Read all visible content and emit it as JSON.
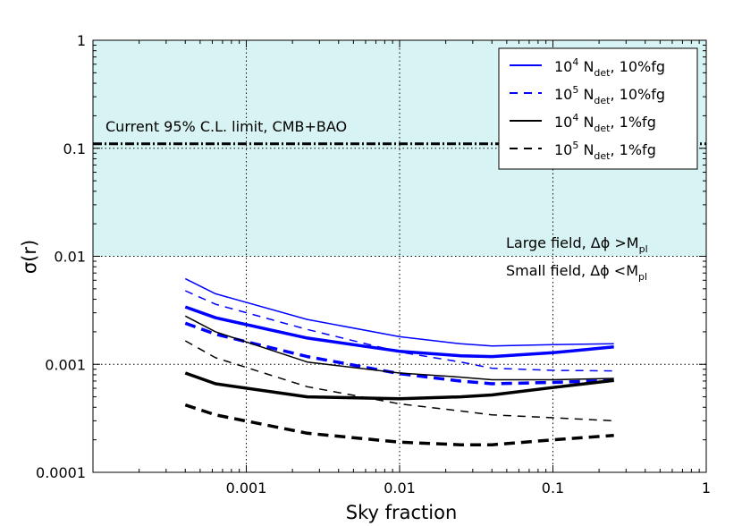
{
  "chart_data": {
    "type": "line",
    "xscale": "log",
    "yscale": "log",
    "xlim": [
      0.0001,
      1
    ],
    "ylim": [
      0.0001,
      1
    ],
    "xlabel": "Sky fraction",
    "ylabel": "σ(r)",
    "x_ticks": [
      0.001,
      0.01,
      0.1,
      1
    ],
    "x_tick_labels": [
      "0.001",
      "0.01",
      "0.1",
      "1"
    ],
    "y_ticks": [
      0.0001,
      0.001,
      0.01,
      0.1,
      1
    ],
    "y_tick_labels": [
      "0.0001",
      "0.001",
      "0.01",
      "0.1",
      "1"
    ],
    "grid": true,
    "shaded_region": {
      "y_from": 0.01,
      "y_to": 1,
      "color": "#d8f3f3"
    },
    "limit_line": {
      "y": 0.11,
      "label": "Current 95% C.L. limit, CMB+BAO"
    },
    "annotations": {
      "large_field": {
        "prefix": "Large field, ",
        "delta_phi": "Δϕ",
        "relation": " >M",
        "subscript": "pl"
      },
      "small_field": {
        "prefix": "Small field, ",
        "delta_phi": "Δϕ",
        "relation": " <M",
        "subscript": "pl"
      }
    },
    "x": [
      0.0004,
      0.00063,
      0.0025,
      0.01,
      0.025,
      0.04,
      0.1,
      0.25
    ],
    "series": [
      {
        "name": "1e4 Ndet 10%fg thin",
        "color": "#0000ff",
        "dash": "solid",
        "width": 1.5,
        "values": [
          0.0062,
          0.0045,
          0.0026,
          0.0018,
          0.00155,
          0.00148,
          0.00152,
          0.00155
        ]
      },
      {
        "name": "1e4 Ndet 10%fg thick",
        "color": "#0000ff",
        "dash": "solid",
        "width": 3.5,
        "values": [
          0.0034,
          0.0027,
          0.00175,
          0.00132,
          0.0012,
          0.00118,
          0.00128,
          0.00145
        ]
      },
      {
        "name": "1e5 Ndet 10%fg thin",
        "color": "#0000ff",
        "dash": "dashed",
        "width": 1.5,
        "values": [
          0.0048,
          0.0036,
          0.0021,
          0.0013,
          0.00105,
          0.00092,
          0.00088,
          0.00087
        ]
      },
      {
        "name": "1e5 Ndet 10%fg thick",
        "color": "#0000ff",
        "dash": "dashed",
        "width": 3.5,
        "values": [
          0.0024,
          0.0019,
          0.00118,
          0.00082,
          0.0007,
          0.00066,
          0.00068,
          0.00071
        ]
      },
      {
        "name": "1e4 Ndet 1%fg thin",
        "color": "#000000",
        "dash": "solid",
        "width": 1.5,
        "values": [
          0.0028,
          0.002,
          0.00105,
          0.00083,
          0.00076,
          0.00072,
          0.00072,
          0.00074
        ]
      },
      {
        "name": "1e4 Ndet 1%fg thick",
        "color": "#000000",
        "dash": "solid",
        "width": 3.5,
        "values": [
          0.00083,
          0.00066,
          0.0005,
          0.00048,
          0.0005,
          0.00052,
          0.00061,
          0.00071
        ]
      },
      {
        "name": "1e5 Ndet 1%fg thin",
        "color": "#000000",
        "dash": "dashed",
        "width": 1.5,
        "values": [
          0.00165,
          0.00115,
          0.00062,
          0.00043,
          0.00037,
          0.00034,
          0.00032,
          0.0003
        ]
      },
      {
        "name": "1e5 Ndet 1%fg thick",
        "color": "#000000",
        "dash": "dashed",
        "width": 3.5,
        "values": [
          0.00042,
          0.00034,
          0.00023,
          0.00019,
          0.00018,
          0.00018,
          0.0002,
          0.00022
        ]
      }
    ],
    "legend": {
      "placement": "top-right",
      "entries": [
        {
          "base": "10",
          "exp": "4",
          "n": " N",
          "sub": "det",
          "tail": ", 10%fg",
          "color": "#0000ff",
          "dash": "solid"
        },
        {
          "base": "10",
          "exp": "5",
          "n": " N",
          "sub": "det",
          "tail": ", 10%fg",
          "color": "#0000ff",
          "dash": "dashed"
        },
        {
          "base": "10",
          "exp": "4",
          "n": " N",
          "sub": "det",
          "tail": ", 1%fg",
          "color": "#000000",
          "dash": "solid"
        },
        {
          "base": "10",
          "exp": "5",
          "n": " N",
          "sub": "det",
          "tail": ", 1%fg",
          "color": "#000000",
          "dash": "dashed"
        }
      ]
    }
  }
}
